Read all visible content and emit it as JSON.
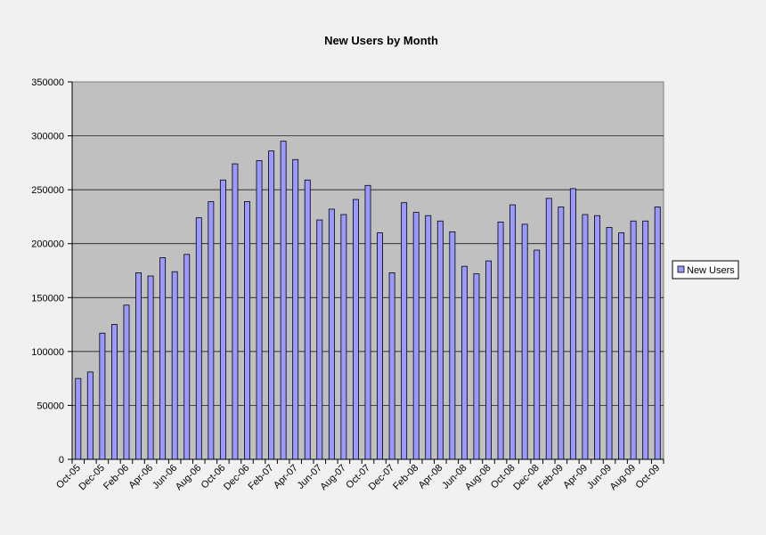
{
  "chart_data": {
    "type": "bar",
    "title": "New Users by Month",
    "xlabel": "",
    "ylabel": "",
    "ylim": [
      0,
      350000
    ],
    "yticks": [
      "0",
      "50000",
      "100000",
      "150000",
      "200000",
      "250000",
      "300000",
      "350000"
    ],
    "grid": true,
    "legend": "right",
    "categories": [
      "Oct-05",
      "Nov-05",
      "Dec-05",
      "Jan-06",
      "Feb-06",
      "Mar-06",
      "Apr-06",
      "May-06",
      "Jun-06",
      "Jul-06",
      "Aug-06",
      "Sep-06",
      "Oct-06",
      "Nov-06",
      "Dec-06",
      "Jan-07",
      "Feb-07",
      "Mar-07",
      "Apr-07",
      "May-07",
      "Jun-07",
      "Jul-07",
      "Aug-07",
      "Sep-07",
      "Oct-07",
      "Nov-07",
      "Dec-07",
      "Jan-08",
      "Feb-08",
      "Mar-08",
      "Apr-08",
      "May-08",
      "Jun-08",
      "Jul-08",
      "Aug-08",
      "Sep-08",
      "Oct-08",
      "Nov-08",
      "Dec-08",
      "Jan-09",
      "Feb-09",
      "Mar-09",
      "Apr-09",
      "May-09",
      "Jun-09",
      "Jul-09",
      "Aug-09",
      "Sep-09",
      "Oct-09"
    ],
    "tick_labels": [
      "Oct-05",
      "Dec-05",
      "Feb-06",
      "Apr-06",
      "Jun-06",
      "Aug-06",
      "Oct-06",
      "Dec-06",
      "Feb-07",
      "Apr-07",
      "Jun-07",
      "Aug-07",
      "Oct-07",
      "Dec-07",
      "Feb-08",
      "Apr-08",
      "Jun-08",
      "Aug-08",
      "Oct-08",
      "Dec-08",
      "Feb-09",
      "Apr-09",
      "Jun-09",
      "Aug-09",
      "Oct-09"
    ],
    "series": [
      {
        "name": "New Users",
        "color": "#9999ff",
        "values": [
          75000,
          81000,
          117000,
          125000,
          143000,
          173000,
          170000,
          187000,
          174000,
          190000,
          224000,
          239000,
          259000,
          274000,
          239000,
          277000,
          286000,
          295000,
          278000,
          259000,
          222000,
          232000,
          227000,
          241000,
          254000,
          210000,
          173000,
          238000,
          229000,
          226000,
          221000,
          211000,
          179000,
          172000,
          184000,
          220000,
          236000,
          218000,
          194000,
          242000,
          234000,
          251000,
          227000,
          226000,
          215000,
          210000,
          221000,
          221000,
          234000
        ]
      }
    ],
    "colors": {
      "plot_background": "#c0c0c0",
      "page_background": "#f1f1f1",
      "bar_fill": "#9999ff",
      "bar_stroke": "#000000"
    }
  }
}
